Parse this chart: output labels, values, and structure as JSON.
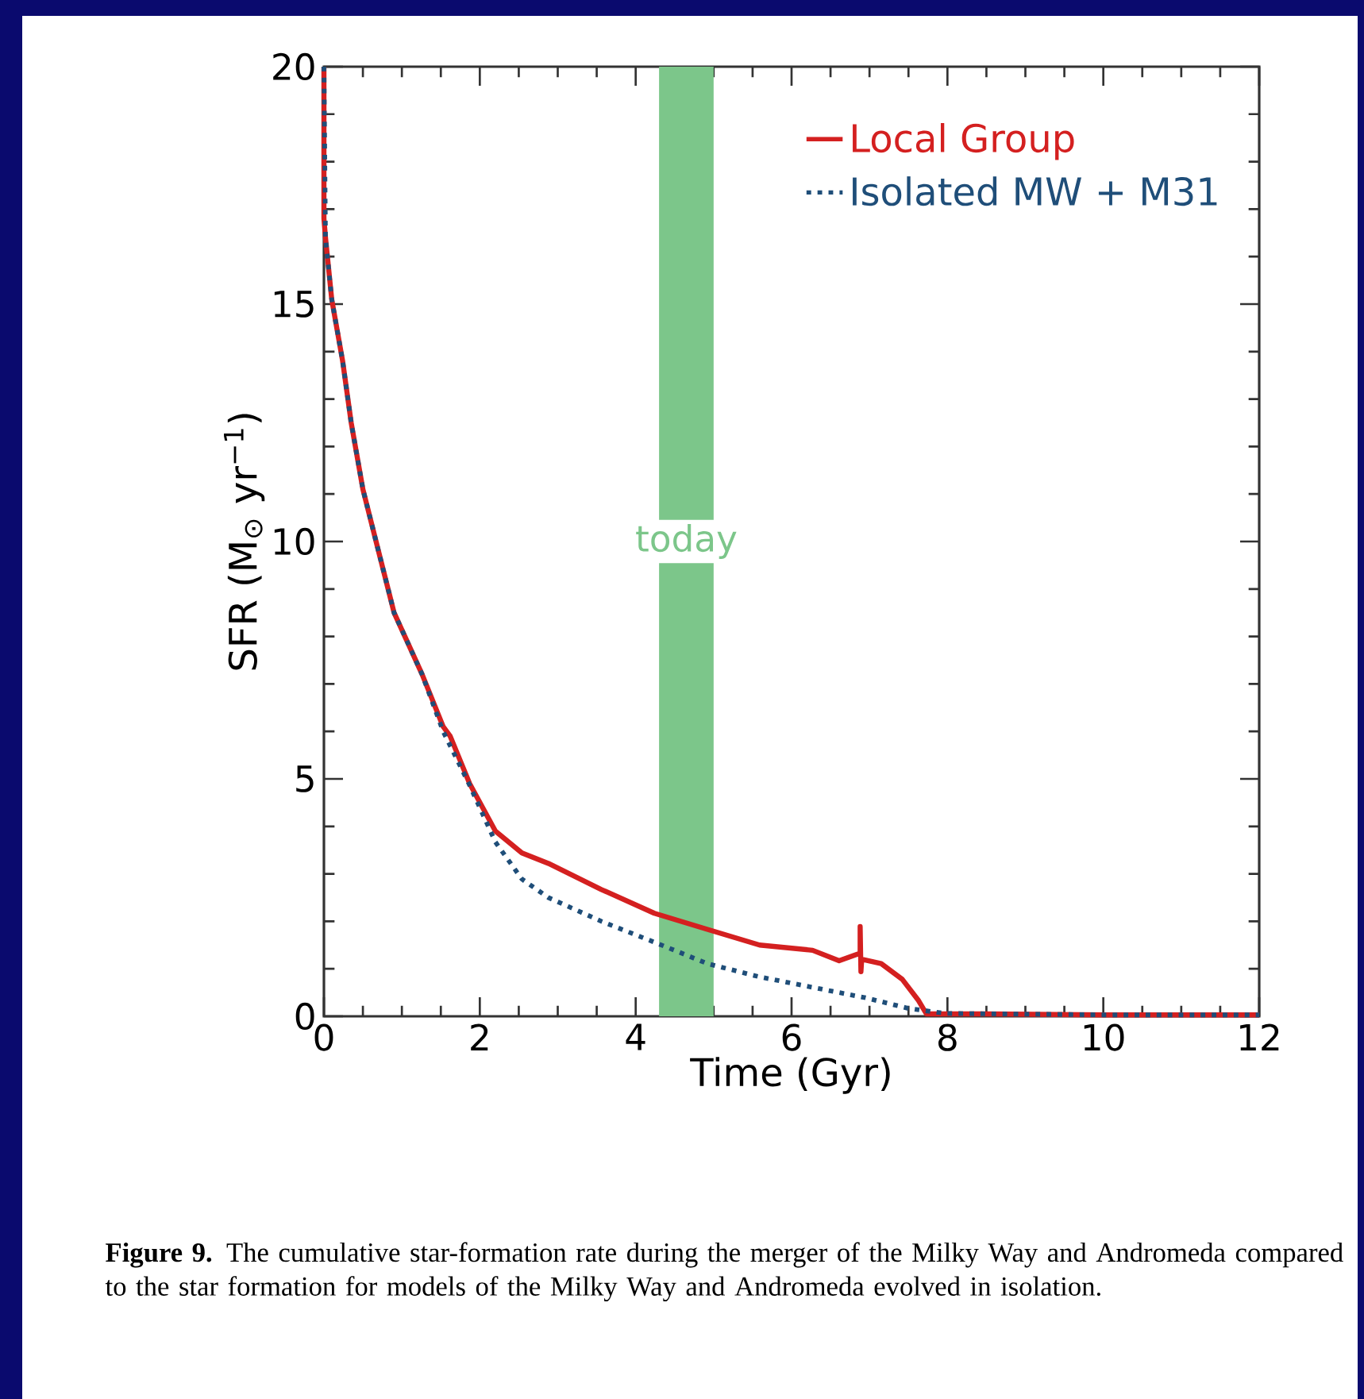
{
  "chart_data": {
    "type": "line",
    "xlabel": "Time (Gyr)",
    "ylabel": "SFR (M$_{⊙}$ yr$^{−1}$)",
    "xlim": [
      0,
      12
    ],
    "ylim": [
      0,
      20
    ],
    "xticks": [
      0,
      2,
      4,
      6,
      8,
      10,
      12
    ],
    "yticks": [
      0,
      5,
      10,
      15,
      20
    ],
    "legend": "top right",
    "grid": false,
    "series": [
      {
        "name": "Local Group",
        "color": "#d42020",
        "line_style": "solid",
        "x": [
          0,
          0.0,
          0.02,
          0.1,
          0.24,
          0.35,
          0.5,
          0.7,
          0.9,
          1.26,
          1.53,
          1.62,
          1.87,
          2.2,
          2.54,
          2.88,
          3.56,
          4.24,
          4.92,
          5.59,
          6.27,
          6.61,
          6.88,
          6.88,
          6.89,
          6.9,
          7.15,
          7.42,
          7.63,
          7.73,
          8.5,
          10,
          12
        ],
        "values": [
          20,
          16.8,
          16.4,
          15.1,
          13.8,
          12.5,
          11.1,
          9.8,
          8.5,
          7.2,
          6.1,
          5.9,
          4.9,
          3.9,
          3.44,
          3.22,
          2.67,
          2.17,
          1.83,
          1.5,
          1.39,
          1.17,
          1.33,
          1.89,
          0.94,
          1.2,
          1.11,
          0.78,
          0.33,
          0.05,
          0.05,
          0.03,
          0.03
        ]
      },
      {
        "name": "Isolated MW + M31",
        "color": "#1f4e79",
        "line_style": "dotted",
        "x": [
          0,
          0.02,
          0.1,
          0.24,
          0.35,
          0.5,
          0.7,
          0.9,
          1.26,
          1.53,
          1.86,
          2.2,
          2.54,
          2.88,
          3.56,
          4.24,
          4.92,
          5.59,
          6.27,
          6.95,
          7.49,
          7.97,
          10,
          12
        ],
        "values": [
          20,
          16.4,
          15.1,
          13.8,
          12.5,
          11.1,
          9.8,
          8.5,
          7.2,
          6.0,
          4.9,
          3.67,
          2.89,
          2.5,
          2.0,
          1.56,
          1.11,
          0.83,
          0.61,
          0.39,
          0.17,
          0.06,
          0.03,
          0.03
        ]
      }
    ],
    "bands": [
      {
        "axis": "x",
        "from": 4.3,
        "to": 5.0,
        "label": "today",
        "color": "#7cc68a"
      }
    ],
    "annotations": [
      "**Figure 9.** The cumulative star-formation rate during the merger of the Milky Way and Andromeda compared to the star formation for models of the Milky Way and Andromeda evolved in isolation."
    ]
  }
}
